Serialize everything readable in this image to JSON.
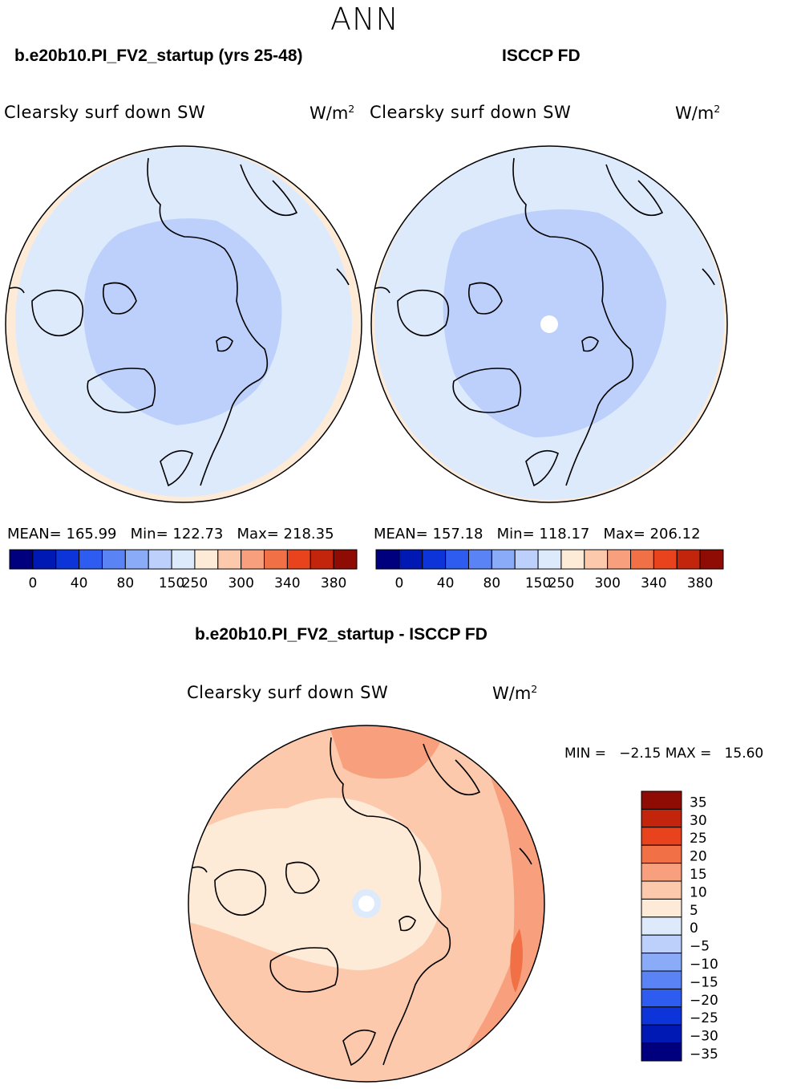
{
  "title": "ANN",
  "panels": {
    "left": {
      "case": "b.e20b10.PI_FV2_startup (yrs 25-48)",
      "variable": "Clearsky surf down SW",
      "units_base": "W/m",
      "units_exp": "2",
      "stats": "MEAN= 165.99   Min= 122.73   Max= 218.35"
    },
    "right": {
      "case": "ISCCP FD",
      "variable": "Clearsky surf down SW",
      "units_base": "W/m",
      "units_exp": "2",
      "stats": "MEAN= 157.18   Min= 118.17   Max= 206.12"
    },
    "diff": {
      "case": "b.e20b10.PI_FV2_startup - ISCCP FD",
      "variable": "Clearsky surf down SW",
      "units_base": "W/m",
      "units_exp": "2",
      "stats": "MIN =   −2.15 MAX =   15.60"
    }
  },
  "colorbar_abs": {
    "colors": [
      "#00007f",
      "#0018b4",
      "#0c34d8",
      "#2e5cf0",
      "#5a84f5",
      "#8aabf8",
      "#bcd0fb",
      "#ddeafc",
      "#fdebd8",
      "#fcc9ad",
      "#f8a07d",
      "#f27045",
      "#e8431c",
      "#c3240c",
      "#8f0c05"
    ],
    "tick_labels": [
      "0",
      "40",
      "80",
      "150",
      "250",
      "300",
      "340",
      "380"
    ]
  },
  "colorbar_diff": {
    "colors": [
      "#8f0c05",
      "#c3240c",
      "#e8431c",
      "#f27045",
      "#f8a07d",
      "#fcc9ad",
      "#fdebd8",
      "#ddeafc",
      "#bcd0fb",
      "#8aabf8",
      "#5a84f5",
      "#2e5cf0",
      "#0c34d8",
      "#0018b4",
      "#00007f"
    ],
    "tick_labels": [
      "35",
      "30",
      "25",
      "20",
      "15",
      "10",
      "5",
      "0",
      "−5",
      "−10",
      "−15",
      "−20",
      "−25",
      "−30",
      "−35"
    ]
  }
}
